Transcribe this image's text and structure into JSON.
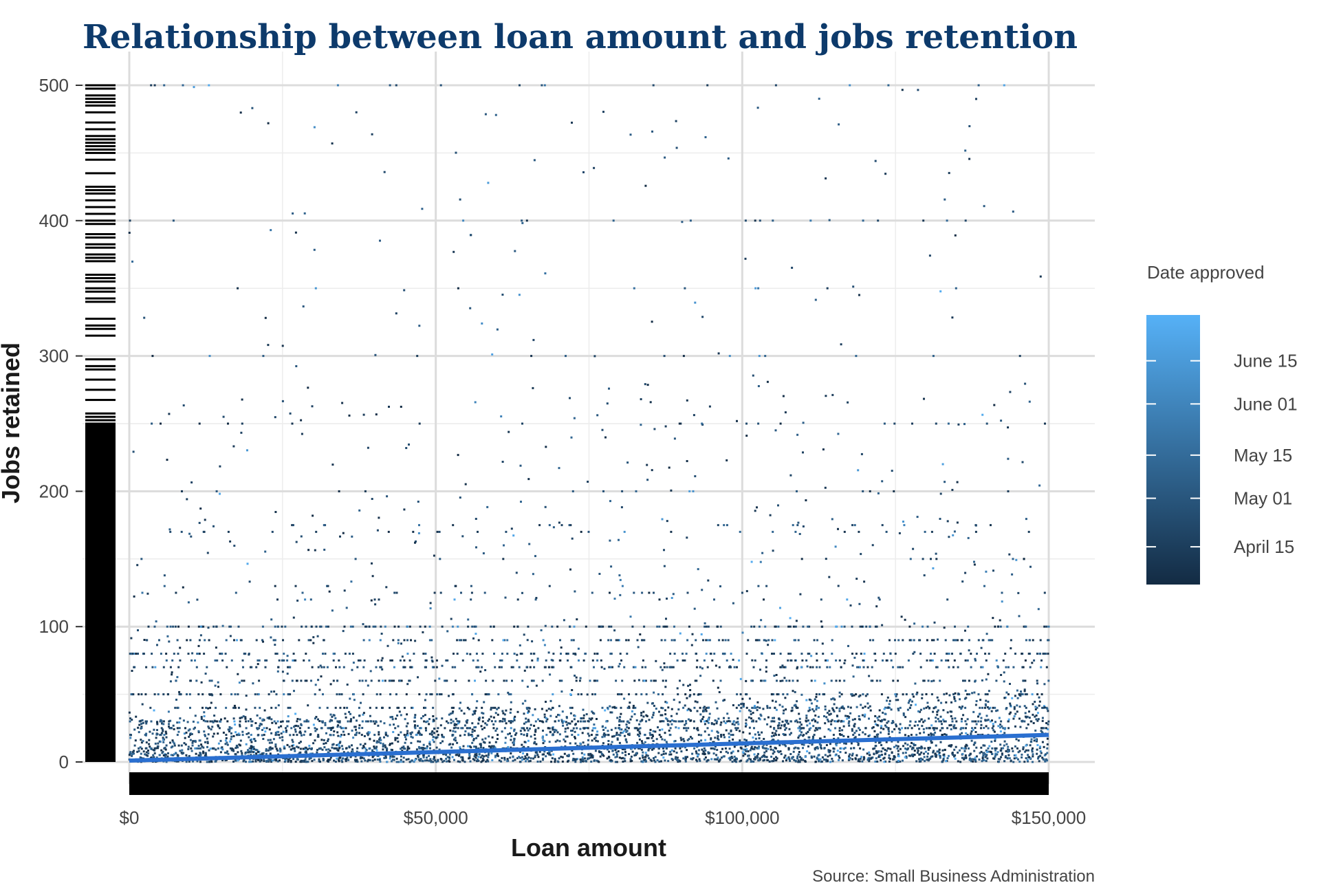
{
  "chart_data": {
    "type": "scatter",
    "title": "Relationship between loan amount and jobs retention",
    "xlabel": "Loan amount",
    "ylabel": "Jobs retained",
    "caption": "Source: Small Business Administration",
    "xlim": [
      0,
      150000
    ],
    "ylim": [
      0,
      500
    ],
    "x_ticks": [
      {
        "value": 0,
        "label": "$0"
      },
      {
        "value": 50000,
        "label": "$50,000"
      },
      {
        "value": 100000,
        "label": "$100,000"
      },
      {
        "value": 150000,
        "label": "$150,000"
      }
    ],
    "y_ticks": [
      {
        "value": 0,
        "label": "0"
      },
      {
        "value": 100,
        "label": "100"
      },
      {
        "value": 200,
        "label": "200"
      },
      {
        "value": 300,
        "label": "300"
      },
      {
        "value": 400,
        "label": "400"
      },
      {
        "value": 500,
        "label": "500"
      }
    ],
    "grid": true,
    "rug_plots": [
      "x-axis",
      "y-axis"
    ],
    "trend_line": {
      "x": [
        0,
        150000
      ],
      "y": [
        1,
        20
      ],
      "color": "#2a6fd0"
    },
    "color_scale": {
      "title": "Date approved",
      "low_color": "#132b43",
      "high_color": "#56b1f7",
      "breaks": [
        {
          "label": "April 15",
          "level": 0.14
        },
        {
          "label": "May 01",
          "level": 0.32
        },
        {
          "label": "May 15",
          "level": 0.48
        },
        {
          "label": "June 01",
          "level": 0.67
        },
        {
          "label": "June 15",
          "level": 0.83
        }
      ]
    },
    "density_summary": {
      "dense_band_max_jobs": 50,
      "common_round_values": [
        10,
        20,
        25,
        30,
        40,
        50,
        60,
        70,
        75,
        80,
        90,
        100,
        120,
        125,
        130,
        150,
        170,
        175,
        200,
        250,
        300,
        350,
        400,
        500
      ],
      "common_round_loans": [
        20000,
        100000
      ]
    }
  },
  "colors": {
    "title": "#0d3a6b",
    "grid_major": "#dcdcdc",
    "grid_minor": "#ececec",
    "rug": "#000000",
    "point_dark": "#132b43",
    "point_light": "#56b1f7",
    "trend": "#2a6fd0"
  }
}
